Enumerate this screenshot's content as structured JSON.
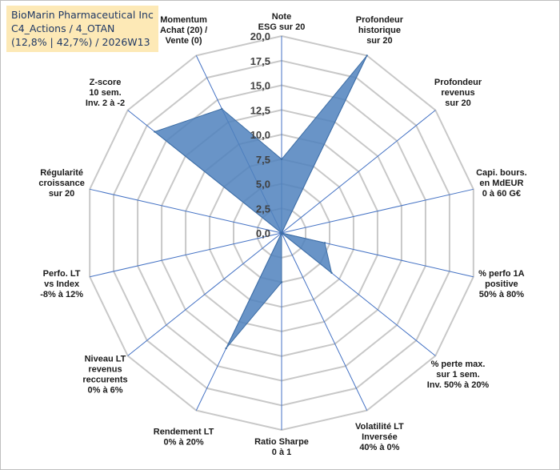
{
  "title": {
    "line1": "BioMarin Pharmaceutical Inc",
    "line2": "C4_Actions / 4_OTAN",
    "line3": "(12,8% | 42,7%) / 2026W13"
  },
  "colors": {
    "fill": "#4f81bd",
    "stroke": "#3e6ea5",
    "grid": "#c8c8c8",
    "axis": "#4472c4",
    "title_bg": "#fde9b6"
  },
  "chart_data": {
    "type": "radar",
    "title": "",
    "rmax": 20,
    "ticks": [
      "0,0",
      "2,5",
      "5,0",
      "7,5",
      "10,0",
      "12,5",
      "15,0",
      "17,5",
      "20,0"
    ],
    "tick_values": [
      0,
      2.5,
      5,
      7.5,
      10,
      12.5,
      15,
      17.5,
      20
    ],
    "categories": [
      [
        "Note",
        "ESG sur 20"
      ],
      [
        "Profondeur",
        "historique",
        "sur 20"
      ],
      [
        "Profondeur",
        "revenus",
        "sur 20"
      ],
      [
        "Capi. bours.",
        "en MdEUR",
        "0 à 60 G€"
      ],
      [
        "% perfo 1A",
        "positive",
        "50% à 80%"
      ],
      [
        "% perte max.",
        "sur 1 sem.",
        "Inv. 50% à 20%"
      ],
      [
        "Volatilité LT",
        "Inversée",
        "40% à 0%"
      ],
      [
        "Ratio Sharpe",
        "0 à 1"
      ],
      [
        "Rendement LT",
        "0% à 20%"
      ],
      [
        "Niveau LT",
        "revenus",
        "reccurents",
        "0% à 6%"
      ],
      [
        "Perfo. LT",
        "vs Index",
        "-8% à 12%"
      ],
      [
        "Régularité",
        "croissance",
        "sur 20"
      ],
      [
        "Z-score",
        "10 sem.",
        "Inv. 2 à -2"
      ],
      [
        "Momentum",
        "Achat (20) /",
        "Vente (0)"
      ]
    ],
    "series": [
      {
        "name": "BioMarin Pharmaceutical Inc",
        "values": [
          7.5,
          20.0,
          0.0,
          0.0,
          4.5,
          6.5,
          0.0,
          5.0,
          13.0,
          0.0,
          0.0,
          0.0,
          16.5,
          14.0
        ]
      }
    ]
  }
}
